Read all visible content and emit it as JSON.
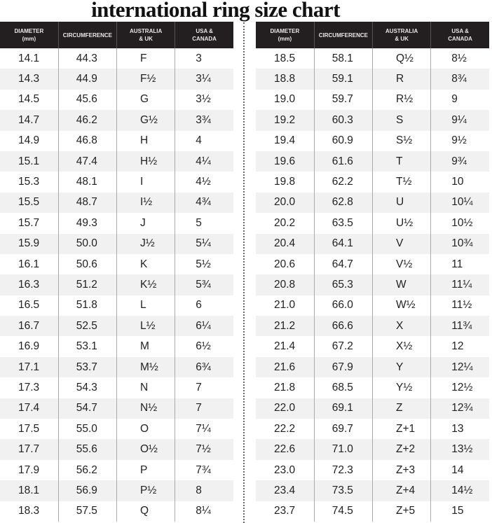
{
  "title": "international ring size chart",
  "headers": [
    "DIAMETER\n(mm)",
    "CIRCUMFERENCE",
    "AUSTRALIA\n& UK",
    "USA &\nCANADA"
  ],
  "left_rows": [
    [
      "14.1",
      "44.3",
      "F",
      "3"
    ],
    [
      "14.3",
      "44.9",
      "F½",
      "3¼"
    ],
    [
      "14.5",
      "45.6",
      "G",
      "3½"
    ],
    [
      "14.7",
      "46.2",
      "G½",
      "3¾"
    ],
    [
      "14.9",
      "46.8",
      "H",
      "4"
    ],
    [
      "15.1",
      "47.4",
      "H½",
      "4¼"
    ],
    [
      "15.3",
      "48.1",
      "I",
      "4½"
    ],
    [
      "15.5",
      "48.7",
      "I½",
      "4¾"
    ],
    [
      "15.7",
      "49.3",
      "J",
      "5"
    ],
    [
      "15.9",
      "50.0",
      "J½",
      "5¼"
    ],
    [
      "16.1",
      "50.6",
      "K",
      "5½"
    ],
    [
      "16.3",
      "51.2",
      "K½",
      "5¾"
    ],
    [
      "16.5",
      "51.8",
      "L",
      "6"
    ],
    [
      "16.7",
      "52.5",
      "L½",
      "6¼"
    ],
    [
      "16.9",
      "53.1",
      "M",
      "6½"
    ],
    [
      "17.1",
      "53.7",
      "M½",
      "6¾"
    ],
    [
      "17.3",
      "54.3",
      "N",
      "7"
    ],
    [
      "17.4",
      "54.7",
      "N½",
      "7"
    ],
    [
      "17.5",
      "55.0",
      "O",
      "7¼"
    ],
    [
      "17.7",
      "55.6",
      "O½",
      "7½"
    ],
    [
      "17.9",
      "56.2",
      "P",
      "7¾"
    ],
    [
      "18.1",
      "56.9",
      "P½",
      "8"
    ],
    [
      "18.3",
      "57.5",
      "Q",
      "8¼"
    ]
  ],
  "right_rows": [
    [
      "18.5",
      "58.1",
      "Q½",
      "8½"
    ],
    [
      "18.8",
      "59.1",
      "R",
      "8¾"
    ],
    [
      "19.0",
      "59.7",
      "R½",
      "9"
    ],
    [
      "19.2",
      "60.3",
      "S",
      "9¼"
    ],
    [
      "19.4",
      "60.9",
      "S½",
      "9½"
    ],
    [
      "19.6",
      "61.6",
      "T",
      "9¾"
    ],
    [
      "19.8",
      "62.2",
      "T½",
      "10"
    ],
    [
      "20.0",
      "62.8",
      "U",
      "10¼"
    ],
    [
      "20.2",
      "63.5",
      "U½",
      "10½"
    ],
    [
      "20.4",
      "64.1",
      "V",
      "10¾"
    ],
    [
      "20.6",
      "64.7",
      "V½",
      "11"
    ],
    [
      "20.8",
      "65.3",
      "W",
      "11¼"
    ],
    [
      "21.0",
      "66.0",
      "W½",
      "11½"
    ],
    [
      "21.2",
      "66.6",
      "X",
      "11¾"
    ],
    [
      "21.4",
      "67.2",
      "X½",
      "12"
    ],
    [
      "21.6",
      "67.9",
      "Y",
      "12¼"
    ],
    [
      "21.8",
      "68.5",
      "Y½",
      "12½"
    ],
    [
      "22.0",
      "69.1",
      "Z",
      "12¾"
    ],
    [
      "22.2",
      "69.7",
      "Z+1",
      "13"
    ],
    [
      "22.6",
      "71.0",
      "Z+2",
      "13½"
    ],
    [
      "23.0",
      "72.3",
      "Z+3",
      "14"
    ],
    [
      "23.4",
      "73.5",
      "Z+4",
      "14½"
    ],
    [
      "23.7",
      "74.5",
      "Z+5",
      "15"
    ]
  ]
}
